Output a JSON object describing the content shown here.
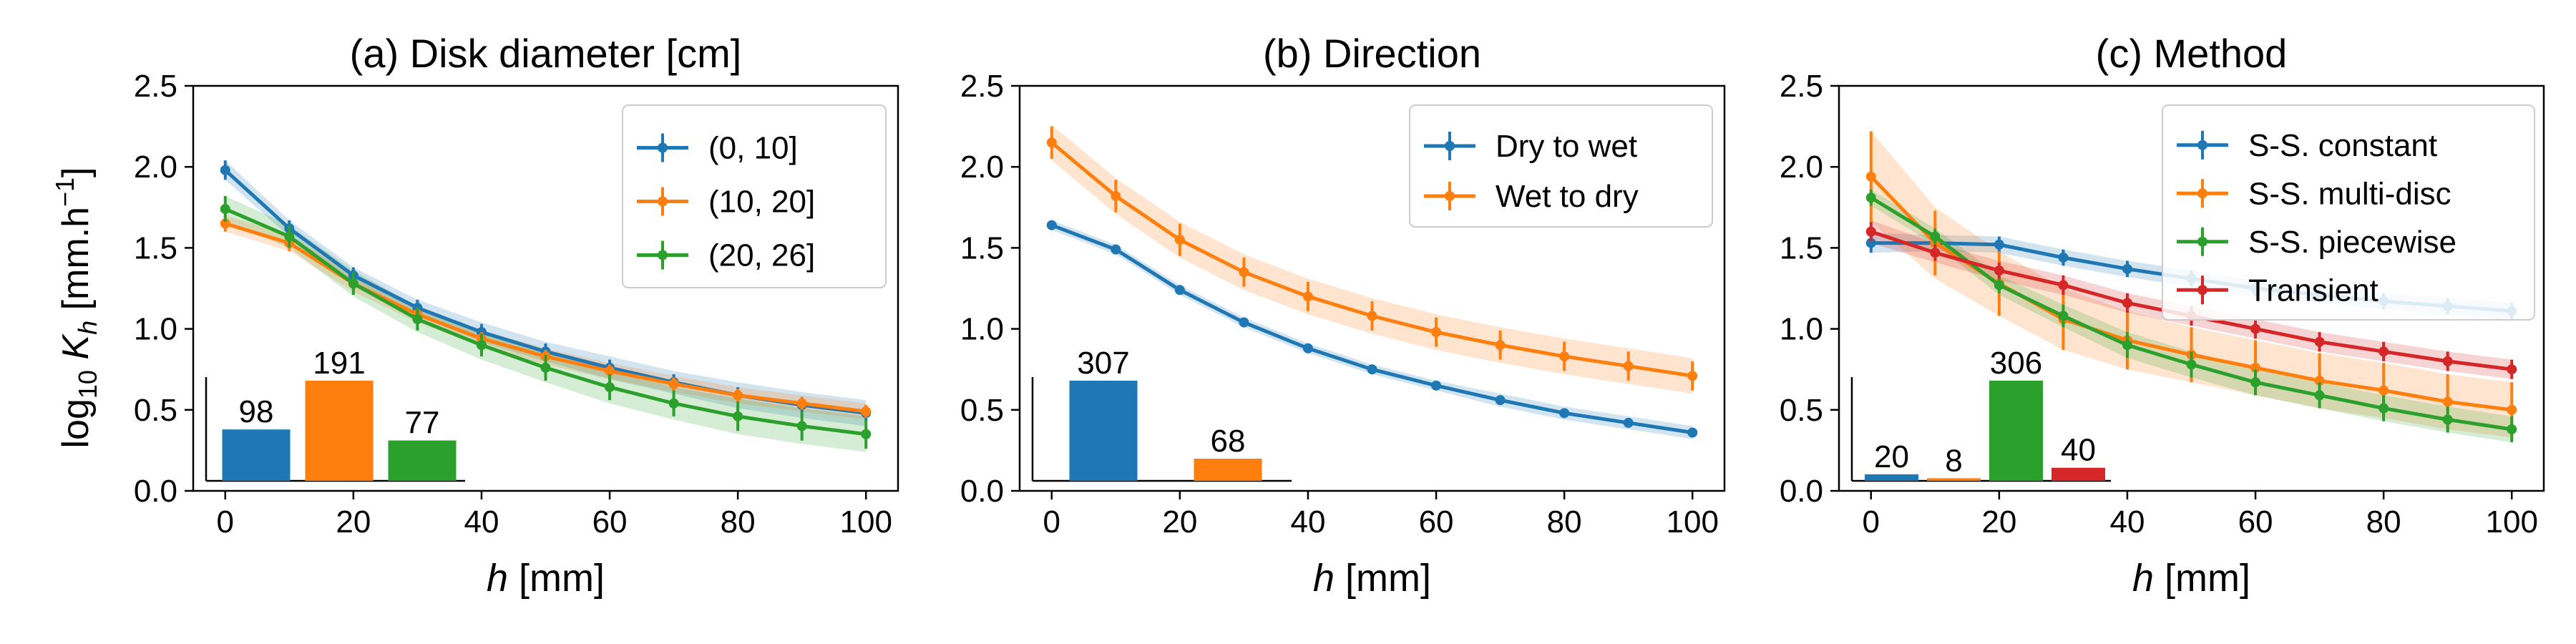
{
  "figure": {
    "ylabel_main": "log",
    "ylabel_sub": "10",
    "ylabel_var": "K",
    "ylabel_var_sub": "h",
    "ylabel_unit": "[mm.h",
    "ylabel_unit_sup": "−1",
    "ylabel_close": "]"
  },
  "chart_data": [
    {
      "type": "line",
      "title": "(a) Disk diameter [cm]",
      "xlabel_var": "h",
      "xlabel_unit": "[mm]",
      "ylabel": "log10 Kh [mm.h−1]",
      "x": [
        0,
        10,
        20,
        30,
        40,
        50,
        60,
        70,
        80,
        90,
        100
      ],
      "xlim": [
        -5,
        105
      ],
      "ylim": [
        0,
        2.5
      ],
      "xticks": [
        0,
        20,
        40,
        60,
        80,
        100
      ],
      "yticks": [
        0.0,
        0.5,
        1.0,
        1.5,
        2.0,
        2.5
      ],
      "legend_position": "top-right",
      "series": [
        {
          "name": "(0, 10]",
          "color": "#1f77b4",
          "values": [
            1.98,
            1.62,
            1.33,
            1.13,
            0.98,
            0.86,
            0.76,
            0.67,
            0.59,
            0.53,
            0.48
          ],
          "err": [
            0.06,
            0.05,
            0.05,
            0.05,
            0.05,
            0.05,
            0.05,
            0.05,
            0.05,
            0.05,
            0.05
          ],
          "band": [
            0.06,
            0.05,
            0.05,
            0.05,
            0.06,
            0.06,
            0.07,
            0.07,
            0.08,
            0.08,
            0.08
          ]
        },
        {
          "name": "(10, 20]",
          "color": "#ff7f0e",
          "values": [
            1.65,
            1.53,
            1.28,
            1.09,
            0.94,
            0.83,
            0.74,
            0.66,
            0.59,
            0.54,
            0.49
          ],
          "err": [
            0.05,
            0.05,
            0.05,
            0.04,
            0.04,
            0.04,
            0.04,
            0.04,
            0.04,
            0.04,
            0.04
          ],
          "band": [
            0.05,
            0.05,
            0.05,
            0.05,
            0.05,
            0.05,
            0.05,
            0.05,
            0.05,
            0.05,
            0.05
          ]
        },
        {
          "name": "(20, 26]",
          "color": "#2ca02c",
          "values": [
            1.74,
            1.57,
            1.28,
            1.06,
            0.9,
            0.76,
            0.64,
            0.54,
            0.46,
            0.4,
            0.35
          ],
          "err": [
            0.08,
            0.07,
            0.07,
            0.07,
            0.07,
            0.08,
            0.08,
            0.08,
            0.09,
            0.09,
            0.09
          ],
          "band": [
            0.08,
            0.07,
            0.08,
            0.08,
            0.09,
            0.09,
            0.1,
            0.1,
            0.11,
            0.11,
            0.11
          ]
        }
      ],
      "inset_counts": [
        98,
        191,
        77
      ]
    },
    {
      "type": "line",
      "title": "(b) Direction",
      "xlabel_var": "h",
      "xlabel_unit": "[mm]",
      "x": [
        0,
        10,
        20,
        30,
        40,
        50,
        60,
        70,
        80,
        90,
        100
      ],
      "xlim": [
        -5,
        105
      ],
      "ylim": [
        0,
        2.5
      ],
      "xticks": [
        0,
        20,
        40,
        60,
        80,
        100
      ],
      "yticks": [
        0.0,
        0.5,
        1.0,
        1.5,
        2.0,
        2.5
      ],
      "legend_position": "top-right",
      "series": [
        {
          "name": "Dry to wet",
          "color": "#1f77b4",
          "values": [
            1.64,
            1.49,
            1.24,
            1.04,
            0.88,
            0.75,
            0.65,
            0.56,
            0.48,
            0.42,
            0.36
          ],
          "err": [
            0.03,
            0.03,
            0.03,
            0.03,
            0.03,
            0.03,
            0.03,
            0.03,
            0.03,
            0.03,
            0.03
          ],
          "band": [
            0.03,
            0.03,
            0.03,
            0.03,
            0.03,
            0.03,
            0.03,
            0.04,
            0.04,
            0.04,
            0.04
          ]
        },
        {
          "name": "Wet to dry",
          "color": "#ff7f0e",
          "values": [
            2.15,
            1.82,
            1.55,
            1.35,
            1.2,
            1.08,
            0.98,
            0.9,
            0.83,
            0.77,
            0.71
          ],
          "err": [
            0.1,
            0.1,
            0.1,
            0.09,
            0.09,
            0.09,
            0.09,
            0.09,
            0.09,
            0.09,
            0.09
          ],
          "band": [
            0.11,
            0.11,
            0.11,
            0.11,
            0.11,
            0.11,
            0.11,
            0.11,
            0.11,
            0.11,
            0.11
          ]
        }
      ],
      "inset_counts": [
        307,
        68
      ]
    },
    {
      "type": "line",
      "title": "(c) Method",
      "xlabel_var": "h",
      "xlabel_unit": "[mm]",
      "x": [
        0,
        10,
        20,
        30,
        40,
        50,
        60,
        70,
        80,
        90,
        100
      ],
      "xlim": [
        -5,
        105
      ],
      "ylim": [
        0,
        2.5
      ],
      "xticks": [
        0,
        20,
        40,
        60,
        80,
        100
      ],
      "yticks": [
        0.0,
        0.5,
        1.0,
        1.5,
        2.0,
        2.5
      ],
      "legend_position": "top-right",
      "series": [
        {
          "name": "S-S. constant",
          "color": "#1f77b4",
          "values": [
            1.53,
            1.53,
            1.52,
            1.44,
            1.37,
            1.31,
            1.25,
            1.21,
            1.17,
            1.14,
            1.11
          ],
          "err": [
            0.06,
            0.05,
            0.05,
            0.05,
            0.05,
            0.05,
            0.05,
            0.05,
            0.05,
            0.05,
            0.05
          ],
          "band": [
            0.06,
            0.05,
            0.05,
            0.05,
            0.05,
            0.05,
            0.05,
            0.05,
            0.05,
            0.05,
            0.05
          ]
        },
        {
          "name": "S-S. multi-disc",
          "color": "#ff7f0e",
          "values": [
            1.94,
            1.53,
            1.28,
            1.06,
            0.93,
            0.84,
            0.76,
            0.68,
            0.62,
            0.55,
            0.5
          ],
          "err": [
            0.28,
            0.2,
            0.2,
            0.19,
            0.18,
            0.17,
            0.17,
            0.17,
            0.17,
            0.17,
            0.17
          ],
          "band": [
            0.28,
            0.22,
            0.2,
            0.19,
            0.18,
            0.17,
            0.17,
            0.17,
            0.17,
            0.17,
            0.17
          ]
        },
        {
          "name": "S-S. piecewise",
          "color": "#2ca02c",
          "values": [
            1.81,
            1.57,
            1.27,
            1.08,
            0.9,
            0.78,
            0.67,
            0.59,
            0.51,
            0.44,
            0.38
          ],
          "err": [
            0.05,
            0.05,
            0.05,
            0.07,
            0.08,
            0.08,
            0.08,
            0.08,
            0.08,
            0.08,
            0.08
          ],
          "band": [
            0.05,
            0.05,
            0.06,
            0.07,
            0.08,
            0.08,
            0.08,
            0.08,
            0.08,
            0.08,
            0.08
          ]
        },
        {
          "name": "Transient",
          "color": "#d62728",
          "values": [
            1.6,
            1.47,
            1.36,
            1.27,
            1.16,
            1.08,
            1.0,
            0.92,
            0.86,
            0.8,
            0.75
          ],
          "err": [
            0.06,
            0.05,
            0.05,
            0.06,
            0.06,
            0.06,
            0.06,
            0.06,
            0.06,
            0.06,
            0.06
          ],
          "band": [
            0.07,
            0.06,
            0.06,
            0.06,
            0.06,
            0.06,
            0.06,
            0.06,
            0.06,
            0.06,
            0.06
          ]
        }
      ],
      "inset_counts": [
        20,
        8,
        306,
        40
      ]
    }
  ]
}
